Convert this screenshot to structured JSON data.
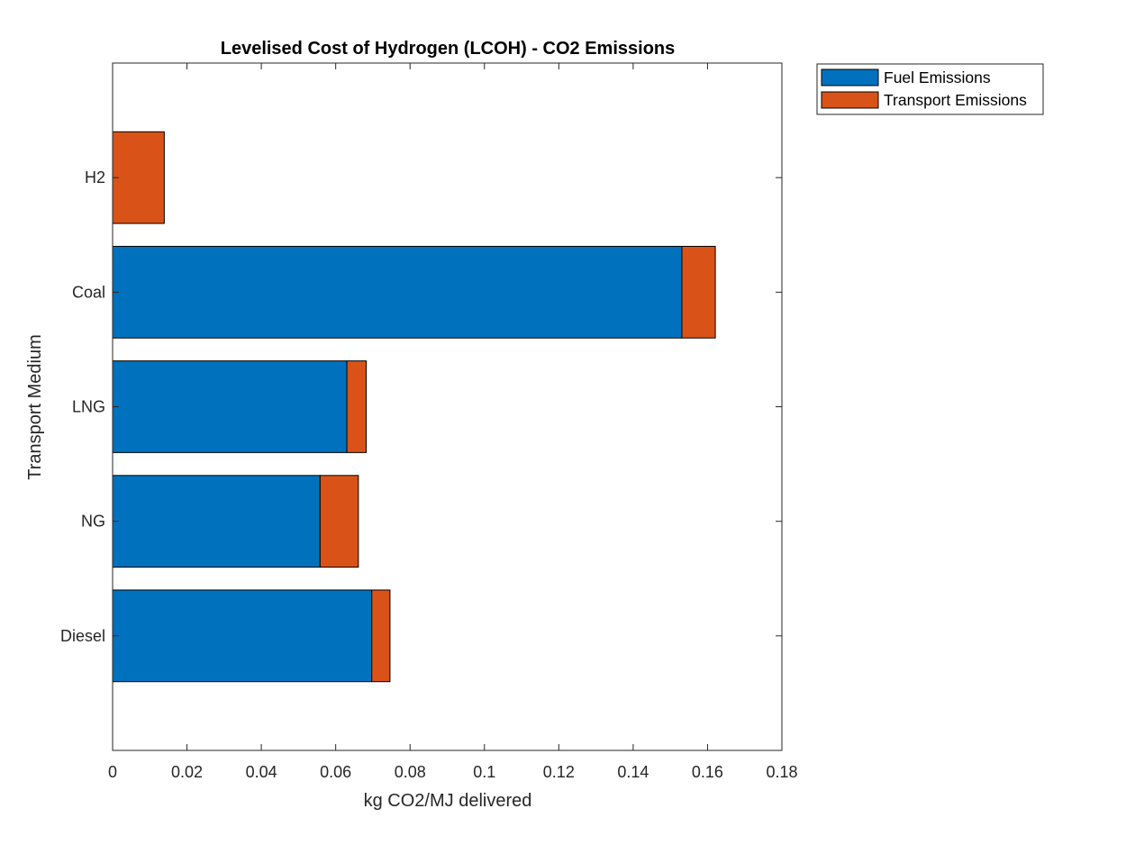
{
  "chart_data": {
    "type": "bar",
    "orientation": "horizontal",
    "stacked": true,
    "title": "Levelised Cost of Hydrogen (LCOH) - CO2 Emissions",
    "xlabel": "kg CO2/MJ delivered",
    "ylabel": "Transport Medium",
    "categories": [
      "Diesel",
      "NG",
      "LNG",
      "Coal",
      "H2"
    ],
    "series": [
      {
        "name": "Fuel Emissions",
        "color": "#0072BD",
        "values": [
          0.0697,
          0.0558,
          0.063,
          0.1531,
          0
        ]
      },
      {
        "name": "Transport Emissions",
        "color": "#D95319",
        "values": [
          0.0049,
          0.0103,
          0.0052,
          0.009,
          0.0139
        ]
      }
    ],
    "xlim": [
      0,
      0.18
    ],
    "xticks": [
      "0",
      "0.02",
      "0.04",
      "0.06",
      "0.08",
      "0.1",
      "0.12",
      "0.14",
      "0.16",
      "0.18"
    ],
    "grid": false,
    "legend": "outside-top-right"
  }
}
